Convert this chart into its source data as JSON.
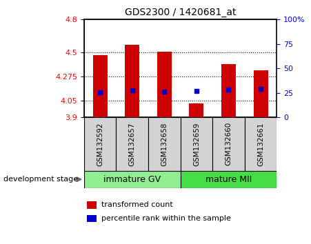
{
  "title": "GDS2300 / 1420681_at",
  "samples": [
    "GSM132592",
    "GSM132657",
    "GSM132658",
    "GSM132659",
    "GSM132660",
    "GSM132661"
  ],
  "bar_bottoms": [
    3.9,
    3.9,
    3.9,
    3.9,
    3.9,
    3.9
  ],
  "bar_tops": [
    4.47,
    4.565,
    4.505,
    4.025,
    4.39,
    4.33
  ],
  "percentile_values": [
    4.13,
    4.145,
    4.135,
    4.14,
    4.155,
    4.16
  ],
  "ylim": [
    3.9,
    4.8
  ],
  "yticks_left": [
    3.9,
    4.05,
    4.275,
    4.5,
    4.8
  ],
  "yticks_right_pct": [
    0,
    25,
    50,
    75,
    100
  ],
  "bar_color": "#cc0000",
  "percentile_color": "#0000cc",
  "immature_color": "#90EE90",
  "mature_color": "#44DD44",
  "group1_label": "immature GV",
  "group2_label": "mature MII",
  "dev_stage_label": "development stage",
  "legend_bar_label": "transformed count",
  "legend_pct_label": "percentile rank within the sample",
  "bar_width": 0.45
}
